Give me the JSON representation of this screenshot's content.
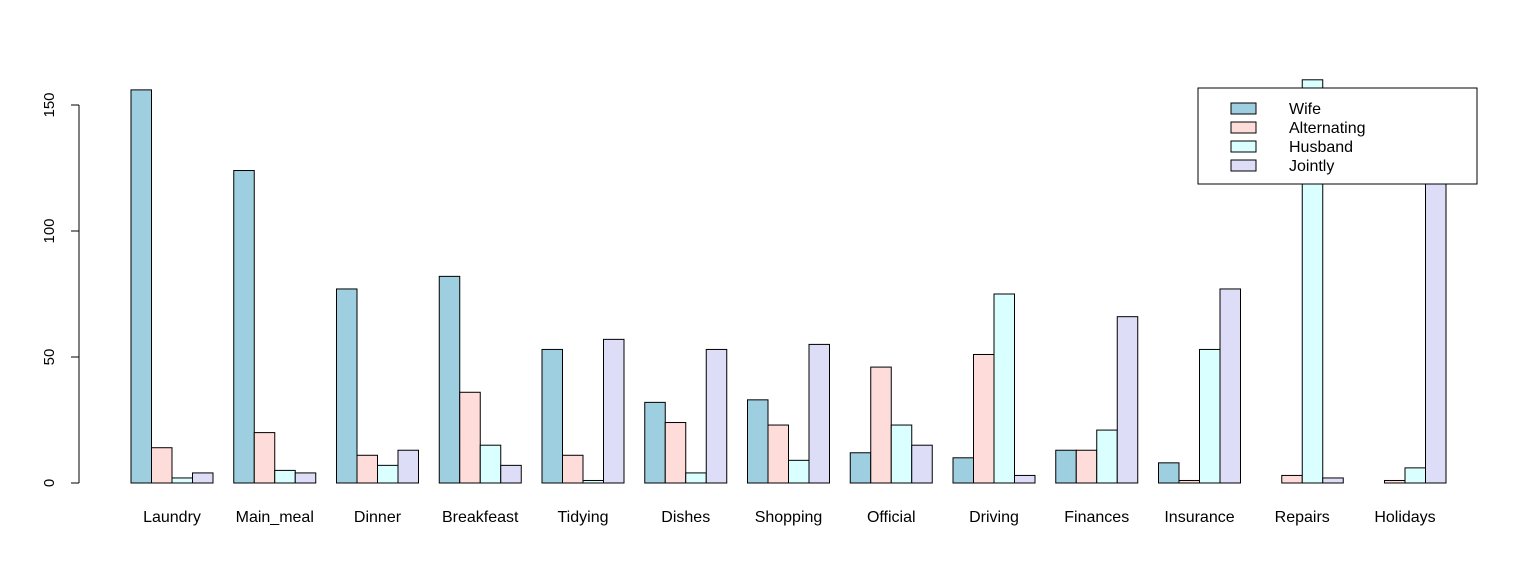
{
  "chart_data": {
    "type": "bar",
    "categories": [
      "Laundry",
      "Main_meal",
      "Dinner",
      "Breakfeast",
      "Tidying",
      "Dishes",
      "Shopping",
      "Official",
      "Driving",
      "Finances",
      "Insurance",
      "Repairs",
      "Holidays"
    ],
    "series": [
      {
        "name": "Wife",
        "color": "#9ECFE0",
        "values": [
          156,
          124,
          77,
          82,
          53,
          32,
          33,
          12,
          10,
          13,
          8,
          0,
          0
        ]
      },
      {
        "name": "Alternating",
        "color": "#FDDCDA",
        "values": [
          14,
          20,
          11,
          36,
          11,
          24,
          23,
          46,
          51,
          13,
          1,
          3,
          1
        ]
      },
      {
        "name": "Husband",
        "color": "#DAFFFF",
        "values": [
          2,
          5,
          7,
          15,
          1,
          4,
          9,
          23,
          75,
          21,
          53,
          160,
          6
        ]
      },
      {
        "name": "Jointly",
        "color": "#DEDDF7",
        "values": [
          4,
          4,
          13,
          7,
          57,
          53,
          55,
          15,
          3,
          66,
          77,
          2,
          153
        ]
      }
    ],
    "yticks": [
      0,
      50,
      100,
      150
    ],
    "ylim": [
      0,
      160
    ],
    "title": "",
    "xlabel": "",
    "ylabel": "",
    "legend": {
      "position": "top-right"
    },
    "grid": false
  }
}
